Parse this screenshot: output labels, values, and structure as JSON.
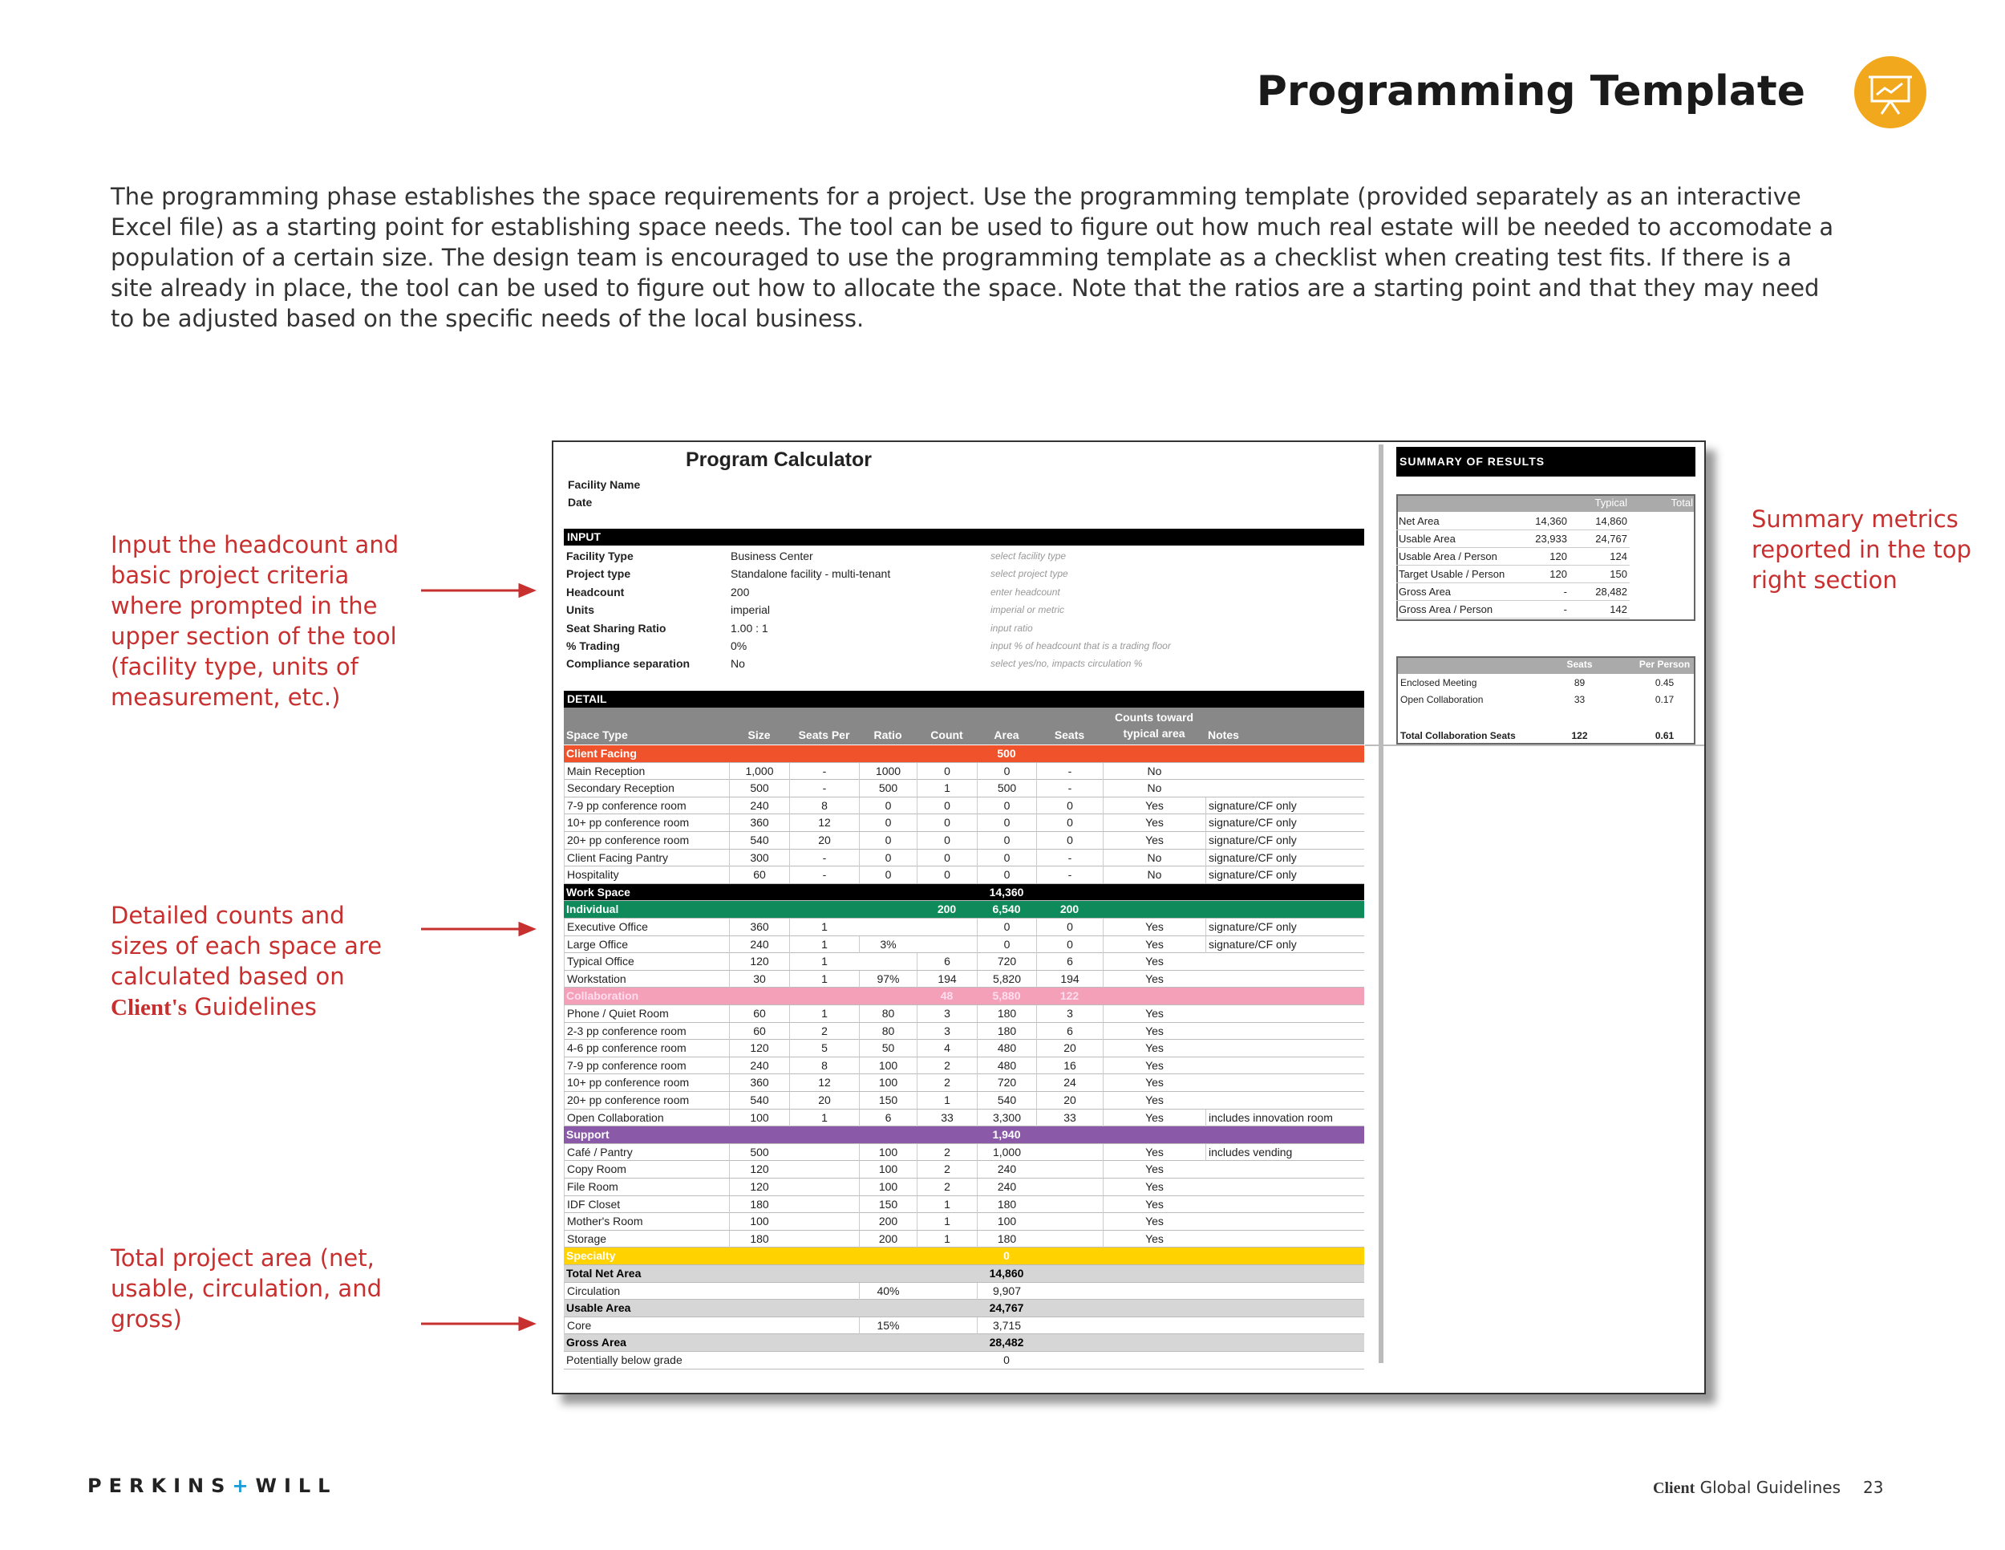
{
  "header": {
    "title": "Programming Template"
  },
  "intro": "The programming phase establishes the space requirements for a project.  Use the programming template (provided separately as an interactive Excel file) as a starting point for establishing space needs. The tool can be used to figure out how much real estate will be needed to accomodate a population of a certain size.  The design team is encouraged to use the programming template as a checklist when creating test fits.  If there is a site already in place, the tool can be used to figure out how to allocate the space.  Note that the ratios are a starting point and that they may need to be adjusted based on the specific needs of the local business.",
  "callouts": [
    {
      "text": "Input the headcount and basic project criteria where prompted in the upper section of the tool (facility type, units of measurement, etc.)"
    },
    {
      "text": "Detailed counts and sizes of each space are calculated based on",
      "brand": "Client's",
      "tail": "Guidelines"
    },
    {
      "text": "Total project area (net, usable, circulation, and gross)"
    },
    {
      "text": "Summary metrics reported in the top right section"
    }
  ],
  "sheet": {
    "title": "Program Calculator",
    "fields": [
      "Facility Name",
      "Date"
    ],
    "input_header": "INPUT",
    "inputs": [
      [
        "Facility Type",
        "Business Center",
        "select facility type"
      ],
      [
        "Project type",
        "Standalone facility - multi-tenant",
        "select project type"
      ],
      [
        "Headcount",
        "200",
        "enter headcount"
      ],
      [
        "Units",
        "imperial",
        "imperial or metric"
      ],
      [
        "Seat Sharing Ratio",
        "1.00 : 1",
        "input ratio"
      ],
      [
        "% Trading",
        "0%",
        "input % of headcount that is a trading floor"
      ],
      [
        "Compliance separation",
        "No",
        "select yes/no, impacts circulation %"
      ]
    ],
    "detail_header": "DETAIL",
    "columns": [
      "Space Type",
      "Size",
      "Seats Per",
      "Ratio",
      "Count",
      "Area",
      "Seats",
      "Counts toward typical area",
      "Notes"
    ],
    "rows": [
      {
        "style": "orange",
        "cells": [
          "Client Facing",
          null,
          null,
          null,
          null,
          "500",
          null,
          null,
          null
        ]
      },
      {
        "cells": [
          "Main Reception",
          "1,000",
          "-",
          "1000",
          "0",
          "0",
          "-",
          "No",
          null
        ]
      },
      {
        "cells": [
          "Secondary Reception",
          "500",
          "-",
          "500",
          "1",
          "500",
          "-",
          "No",
          null
        ]
      },
      {
        "cells": [
          "7-9 pp conference room",
          "240",
          "8",
          "0",
          "0",
          "0",
          "0",
          "Yes",
          "signature/CF only"
        ]
      },
      {
        "cells": [
          "10+ pp conference room",
          "360",
          "12",
          "0",
          "0",
          "0",
          "0",
          "Yes",
          "signature/CF only"
        ]
      },
      {
        "cells": [
          "20+ pp conference room",
          "540",
          "20",
          "0",
          "0",
          "0",
          "0",
          "Yes",
          "signature/CF only"
        ]
      },
      {
        "cells": [
          "Client Facing Pantry",
          "300",
          "-",
          "0",
          "0",
          "0",
          "-",
          "No",
          "signature/CF only"
        ]
      },
      {
        "cells": [
          "Hospitality",
          "60",
          "-",
          "0",
          "0",
          "0",
          "-",
          "No",
          "signature/CF only"
        ]
      },
      {
        "style": "black",
        "cells": [
          "Work Space",
          null,
          null,
          null,
          null,
          "14,360",
          null,
          null,
          null
        ]
      },
      {
        "style": "green",
        "cells": [
          "Individual",
          null,
          null,
          null,
          "200",
          "6,540",
          "200",
          null,
          null
        ]
      },
      {
        "cells": [
          "Executive Office",
          "360",
          "1",
          null,
          null,
          "0",
          "0",
          "Yes",
          "signature/CF only"
        ]
      },
      {
        "cells": [
          "Large Office",
          "240",
          "1",
          "3%",
          null,
          "0",
          "0",
          "Yes",
          "signature/CF only"
        ]
      },
      {
        "cells": [
          "Typical Office",
          "120",
          "1",
          null,
          "6",
          "720",
          "6",
          "Yes",
          null
        ]
      },
      {
        "cells": [
          "Workstation",
          "30",
          "1",
          "97%",
          "194",
          "5,820",
          "194",
          "Yes",
          null
        ]
      },
      {
        "style": "pink",
        "cells": [
          "Collaboration",
          null,
          null,
          null,
          "48",
          "5,880",
          "122",
          null,
          null
        ]
      },
      {
        "cells": [
          "Phone / Quiet Room",
          "60",
          "1",
          "80",
          "3",
          "180",
          "3",
          "Yes",
          null
        ]
      },
      {
        "cells": [
          "2-3 pp conference room",
          "60",
          "2",
          "80",
          "3",
          "180",
          "6",
          "Yes",
          null
        ]
      },
      {
        "cells": [
          "4-6 pp conference room",
          "120",
          "5",
          "50",
          "4",
          "480",
          "20",
          "Yes",
          null
        ]
      },
      {
        "cells": [
          "7-9 pp conference room",
          "240",
          "8",
          "100",
          "2",
          "480",
          "16",
          "Yes",
          null
        ]
      },
      {
        "cells": [
          "10+ pp conference room",
          "360",
          "12",
          "100",
          "2",
          "720",
          "24",
          "Yes",
          null
        ]
      },
      {
        "cells": [
          "20+ pp conference room",
          "540",
          "20",
          "150",
          "1",
          "540",
          "20",
          "Yes",
          null
        ]
      },
      {
        "cells": [
          "Open Collaboration",
          "100",
          "1",
          "6",
          "33",
          "3,300",
          "33",
          "Yes",
          "includes innovation room"
        ]
      },
      {
        "style": "purple",
        "cells": [
          "Support",
          null,
          null,
          null,
          null,
          "1,940",
          null,
          null,
          null
        ]
      },
      {
        "cells": [
          "Café / Pantry",
          "500",
          null,
          "100",
          "2",
          "1,000",
          null,
          "Yes",
          "includes vending"
        ]
      },
      {
        "cells": [
          "Copy Room",
          "120",
          null,
          "100",
          "2",
          "240",
          null,
          "Yes",
          null
        ]
      },
      {
        "cells": [
          "File Room",
          "120",
          null,
          "100",
          "2",
          "240",
          null,
          "Yes",
          null
        ]
      },
      {
        "cells": [
          "IDF Closet",
          "180",
          null,
          "150",
          "1",
          "180",
          null,
          "Yes",
          null
        ]
      },
      {
        "cells": [
          "Mother's Room",
          "100",
          null,
          "200",
          "1",
          "100",
          null,
          "Yes",
          null
        ]
      },
      {
        "cells": [
          "Storage",
          "180",
          null,
          "200",
          "1",
          "180",
          null,
          "Yes",
          null
        ]
      },
      {
        "style": "yellow",
        "cells": [
          "Specialty",
          null,
          null,
          null,
          null,
          "0",
          null,
          null,
          null
        ]
      },
      {
        "style": "gray",
        "cells": [
          "Total Net Area",
          null,
          null,
          null,
          null,
          "14,860",
          null,
          null,
          null
        ]
      },
      {
        "cells": [
          "Circulation",
          null,
          null,
          "40%",
          null,
          "9,907",
          null,
          null,
          null
        ]
      },
      {
        "style": "gray",
        "cells": [
          "Usable Area",
          null,
          null,
          null,
          null,
          "24,767",
          null,
          null,
          null
        ]
      },
      {
        "cells": [
          "Core",
          null,
          null,
          "15%",
          null,
          "3,715",
          null,
          null,
          null
        ]
      },
      {
        "style": "gray",
        "cells": [
          "Gross Area",
          null,
          null,
          null,
          null,
          "28,482",
          null,
          null,
          null
        ]
      },
      {
        "style": "plain",
        "cells": [
          "Potentially below grade",
          null,
          null,
          null,
          null,
          "0",
          null,
          null,
          null
        ]
      }
    ],
    "summary": {
      "title": "SUMMARY OF RESULTS",
      "columns": [
        "Typical",
        "Total"
      ],
      "rows": [
        [
          "Net Area",
          "14,360",
          "14,860"
        ],
        [
          "Usable Area",
          "23,933",
          "24,767"
        ],
        [
          "Usable Area / Person",
          "120",
          "124"
        ],
        [
          "Target Usable / Person",
          "120",
          "150"
        ],
        [
          "Gross Area",
          "-",
          "28,482"
        ],
        [
          "Gross Area / Person",
          "-",
          "142"
        ]
      ],
      "seat_columns": [
        "Seats",
        "Per Person"
      ],
      "seat_rows": [
        [
          "Enclosed Meeting",
          "89",
          "0.45"
        ],
        [
          "Open Collaboration",
          "33",
          "0.17"
        ],
        [
          "Total Collaboration Seats",
          "122",
          "0.61"
        ]
      ]
    }
  },
  "footer": {
    "logo": [
      "PERKINS",
      "+",
      "WILL"
    ],
    "brand": "Client",
    "guide": "Global Guidelines",
    "page": "23"
  }
}
